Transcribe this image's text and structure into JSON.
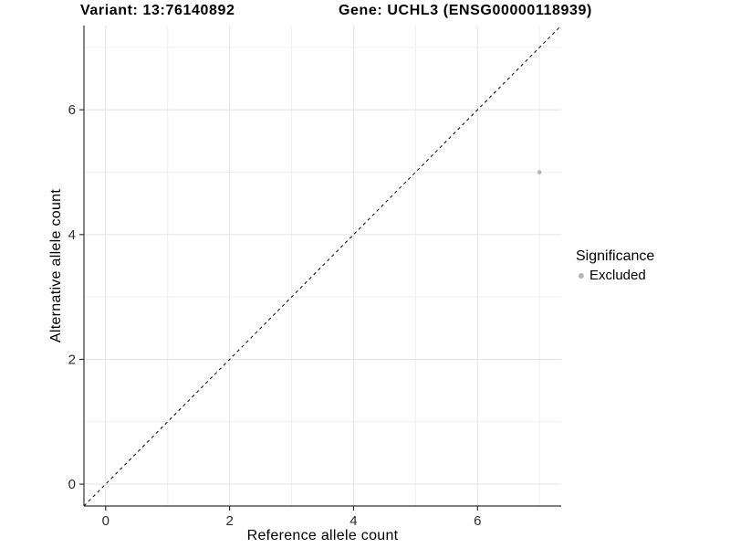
{
  "chart_data": {
    "type": "scatter",
    "title_left": "Variant: 13:76140892",
    "title_right": "Gene: UCHL3 (ENSG00000118939)",
    "xlabel": "Reference allele count",
    "ylabel": "Alternative allele count",
    "xlim": [
      -0.35,
      7.35
    ],
    "ylim": [
      -0.35,
      7.35
    ],
    "x_ticks": [
      0,
      2,
      4,
      6
    ],
    "y_ticks": [
      0,
      2,
      4,
      6
    ],
    "x_minor_ticks": [
      1,
      3,
      5,
      7
    ],
    "y_minor_ticks": [
      1,
      3,
      5,
      7
    ],
    "grid": true,
    "series": [
      {
        "name": "Excluded",
        "color": "#b5b5b5",
        "points": [
          {
            "x": 7,
            "y": 5
          }
        ]
      }
    ],
    "identity_line": {
      "style": "dashed",
      "color": "#000000",
      "from": -0.35,
      "to": 7.35
    },
    "legend": {
      "title": "Significance",
      "position": "right",
      "entries": [
        {
          "label": "Excluded",
          "color": "#b5b5b5"
        }
      ]
    },
    "status_colors": {
      "excluded": "#b5b5b5"
    }
  }
}
